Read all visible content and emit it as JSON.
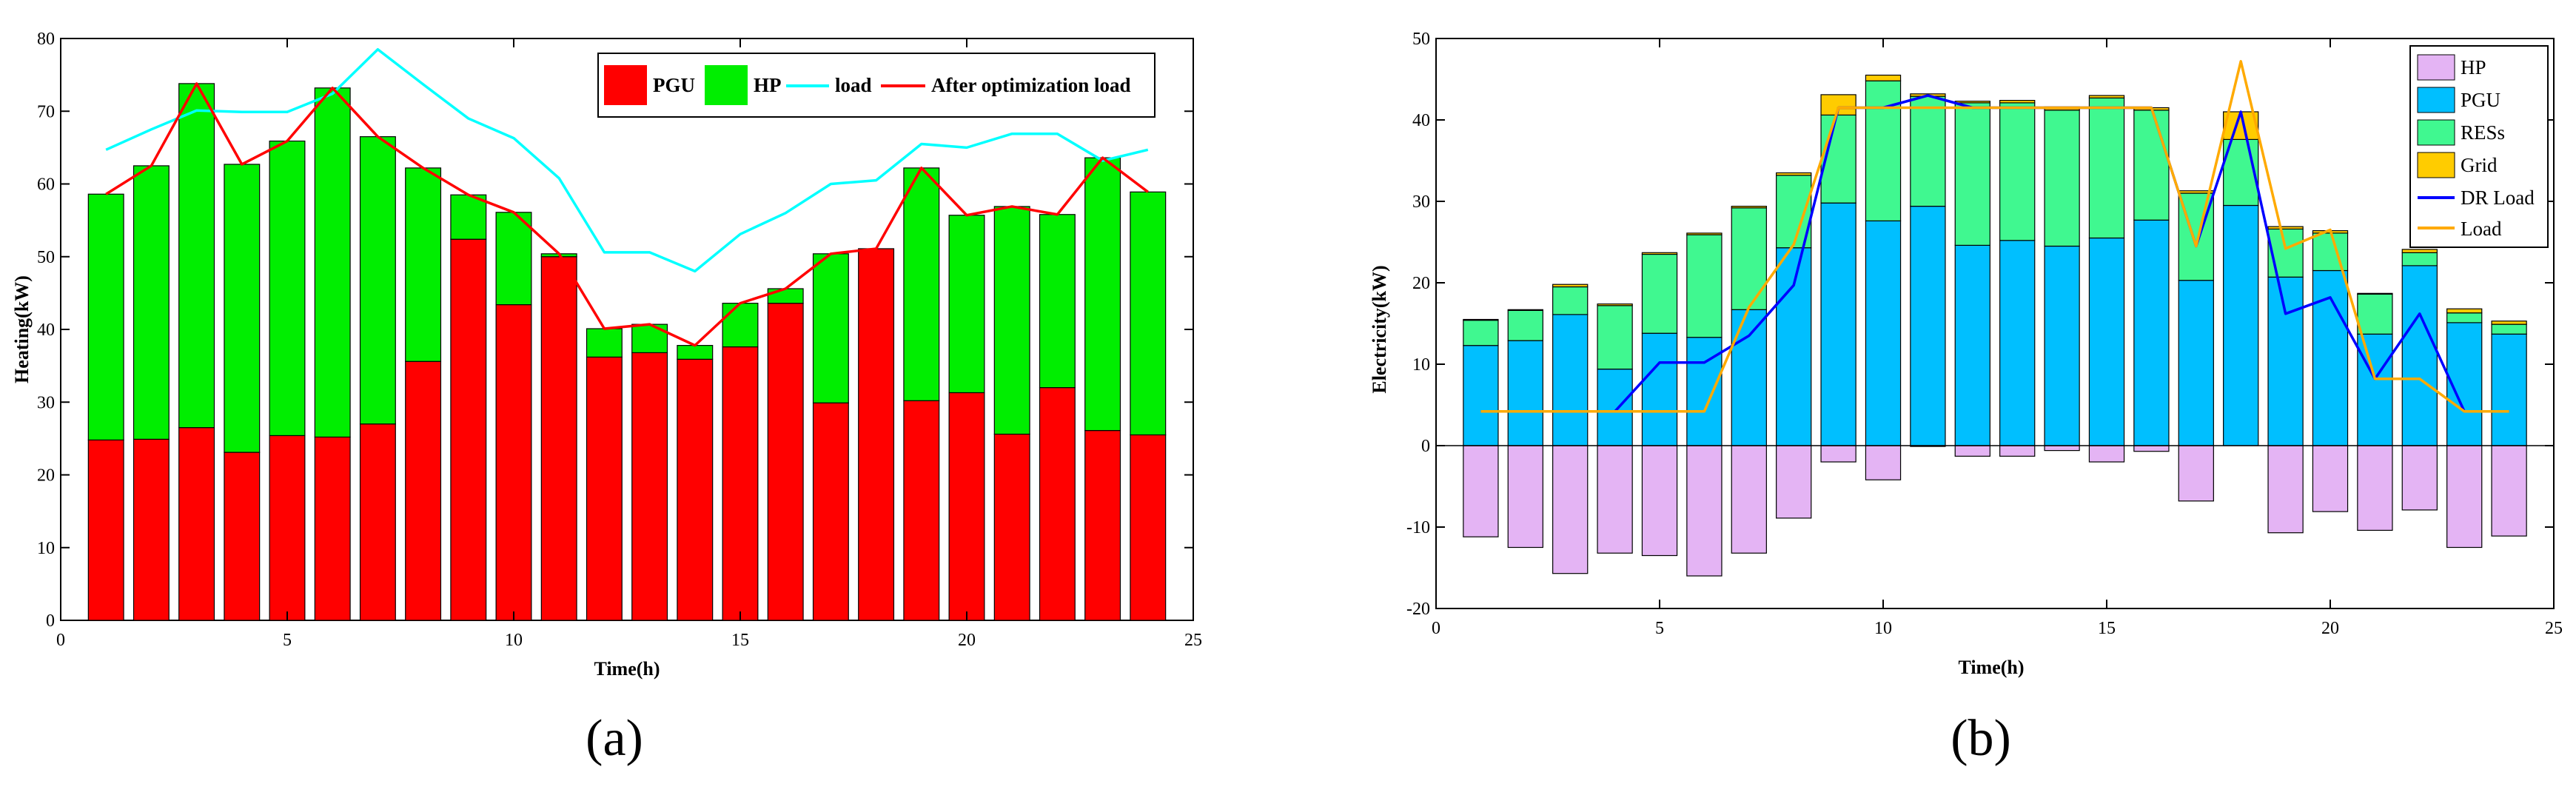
{
  "chart_data": [
    {
      "type": "bar",
      "panel_label": "(a)",
      "title": "",
      "xlabel": "Time(h)",
      "ylabel": "Heating(kW)",
      "xlim": [
        0,
        25
      ],
      "ylim": [
        0,
        80
      ],
      "xticks": [
        0,
        5,
        10,
        15,
        20,
        25
      ],
      "yticks": [
        0,
        10,
        20,
        30,
        40,
        50,
        60,
        70,
        80
      ],
      "stacked": true,
      "grid": false,
      "legend_position": "top-right",
      "x": [
        1,
        2,
        3,
        4,
        5,
        6,
        7,
        8,
        9,
        10,
        11,
        12,
        13,
        14,
        15,
        16,
        17,
        18,
        19,
        20,
        21,
        22,
        23,
        24
      ],
      "series": [
        {
          "name": "PGU",
          "kind": "bar",
          "color": "#ff0000",
          "values": [
            24.8,
            24.9,
            26.5,
            23.1,
            25.4,
            25.2,
            27.0,
            35.6,
            52.4,
            43.4,
            50.0,
            36.2,
            36.8,
            35.9,
            37.6,
            43.6,
            29.9,
            51.1,
            30.2,
            31.3,
            25.6,
            32.0,
            26.1,
            25.5
          ]
        },
        {
          "name": "HP",
          "kind": "bar",
          "color": "#00ee00",
          "values": [
            33.8,
            37.6,
            47.3,
            39.6,
            40.5,
            48.0,
            39.5,
            26.6,
            6.1,
            12.7,
            0.4,
            3.9,
            3.9,
            1.9,
            6.0,
            2.0,
            20.5,
            0.0,
            32.0,
            24.4,
            31.3,
            23.8,
            37.5,
            33.4
          ]
        },
        {
          "name": "load",
          "kind": "line",
          "color": "#00ffff",
          "values": [
            64.7,
            67.5,
            70.1,
            69.9,
            69.9,
            72.4,
            78.5,
            73.7,
            69.0,
            66.3,
            60.8,
            50.6,
            50.6,
            48.0,
            53.1,
            56.0,
            60.0,
            60.5,
            65.5,
            65.0,
            66.9,
            66.9,
            63.2,
            64.7
          ]
        },
        {
          "name": "After optimization load",
          "kind": "line",
          "color": "#ff0000",
          "values": [
            58.6,
            62.5,
            73.8,
            62.7,
            65.9,
            73.2,
            66.5,
            62.2,
            58.5,
            56.1,
            50.4,
            40.1,
            40.7,
            37.8,
            43.6,
            45.6,
            50.4,
            51.1,
            62.2,
            55.7,
            56.9,
            55.8,
            63.6,
            58.9
          ]
        }
      ],
      "legend": [
        "PGU",
        "HP",
        "load",
        "After optimization load"
      ]
    },
    {
      "type": "bar",
      "panel_label": "(b)",
      "title": "",
      "xlabel": "Time(h)",
      "ylabel": "Electricity(kW)",
      "xlim": [
        0,
        25
      ],
      "ylim": [
        -20,
        50
      ],
      "xticks": [
        0,
        5,
        10,
        15,
        20,
        25
      ],
      "yticks": [
        -20,
        -10,
        0,
        10,
        20,
        30,
        40,
        50
      ],
      "stacked": true,
      "grid": false,
      "legend_position": "top-right",
      "x": [
        1,
        2,
        3,
        4,
        5,
        6,
        7,
        8,
        9,
        10,
        11,
        12,
        13,
        14,
        15,
        16,
        17,
        18,
        19,
        20,
        21,
        22,
        23,
        24
      ],
      "series": [
        {
          "name": "HP",
          "kind": "bar",
          "color": "#e4b4f4",
          "values": [
            -11.2,
            -12.5,
            -15.7,
            -13.2,
            -13.5,
            -16.0,
            -13.2,
            -8.9,
            -2.0,
            -4.2,
            -0.1,
            -1.3,
            -1.3,
            -0.6,
            -2.0,
            -0.7,
            -6.8,
            0,
            -10.7,
            -8.1,
            -10.4,
            -7.9,
            -12.5,
            -11.1
          ]
        },
        {
          "name": "PGU",
          "kind": "bar",
          "color": "#00bfff",
          "values": [
            12.3,
            12.9,
            16.1,
            9.4,
            13.8,
            13.3,
            16.7,
            24.3,
            29.8,
            27.6,
            29.4,
            24.6,
            25.2,
            24.5,
            25.5,
            27.7,
            20.3,
            29.5,
            20.7,
            21.5,
            13.7,
            22.1,
            15.1,
            13.7
          ]
        },
        {
          "name": "RESs",
          "kind": "bar",
          "color": "#40f890",
          "values": [
            3.1,
            3.7,
            3.4,
            7.8,
            9.7,
            12.6,
            12.5,
            8.9,
            10.8,
            17.2,
            13.5,
            17.5,
            16.9,
            16.7,
            17.2,
            13.5,
            10.7,
            8.1,
            5.9,
            4.6,
            4.9,
            1.6,
            1.2,
            1.2
          ]
        },
        {
          "name": "Grid",
          "kind": "bar",
          "color": "#ffcc00",
          "values": [
            0.1,
            0.1,
            0.3,
            0.2,
            0.2,
            0.2,
            0.2,
            0.3,
            2.5,
            0.7,
            0.3,
            0.2,
            0.3,
            0.4,
            0.3,
            0.3,
            0.3,
            3.4,
            0.3,
            0.3,
            0.1,
            0.4,
            0.5,
            0.4
          ]
        },
        {
          "name": "DR Load",
          "kind": "line",
          "color": "#0000ff",
          "values": [
            4.2,
            4.2,
            4.2,
            4.2,
            10.2,
            10.2,
            13.5,
            19.7,
            41.5,
            41.5,
            43.0,
            41.5,
            41.5,
            41.5,
            41.5,
            41.5,
            24.5,
            41.0,
            16.2,
            18.2,
            8.2,
            16.2,
            4.2,
            4.2
          ]
        },
        {
          "name": "Load",
          "kind": "line",
          "color": "#ffaa00",
          "values": [
            4.2,
            4.2,
            4.2,
            4.2,
            4.2,
            4.2,
            17.0,
            24.7,
            41.5,
            41.5,
            41.5,
            41.5,
            41.5,
            41.5,
            41.5,
            41.5,
            24.5,
            47.2,
            24.2,
            26.5,
            8.2,
            8.2,
            4.2,
            4.2
          ]
        }
      ],
      "legend": [
        "HP",
        "PGU",
        "RESs",
        "Grid",
        "DR Load",
        "Load"
      ]
    }
  ]
}
